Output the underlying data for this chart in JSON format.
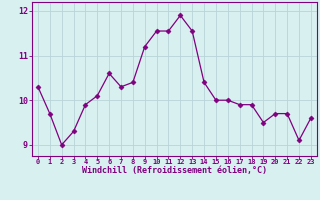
{
  "x": [
    0,
    1,
    2,
    3,
    4,
    5,
    6,
    7,
    8,
    9,
    10,
    11,
    12,
    13,
    14,
    15,
    16,
    17,
    18,
    19,
    20,
    21,
    22,
    23
  ],
  "y": [
    10.3,
    9.7,
    9.0,
    9.3,
    9.9,
    10.1,
    10.6,
    10.3,
    10.4,
    11.2,
    11.55,
    11.55,
    11.9,
    11.55,
    10.4,
    10.0,
    10.0,
    9.9,
    9.9,
    9.5,
    9.7,
    9.7,
    9.1,
    9.6
  ],
  "line_color": "#800080",
  "marker": "D",
  "marker_size": 2.5,
  "bg_color": "#d8f0f0",
  "grid_color": "#b8d4d8",
  "xlabel": "Windchill (Refroidissement éolien,°C)",
  "ylabel_ticks": [
    9,
    10,
    11,
    12
  ],
  "xtick_labels": [
    "0",
    "1",
    "2",
    "3",
    "4",
    "5",
    "6",
    "7",
    "8",
    "9",
    "10",
    "11",
    "12",
    "13",
    "14",
    "15",
    "16",
    "17",
    "18",
    "19",
    "20",
    "21",
    "22",
    "23"
  ],
  "ylim": [
    8.75,
    12.2
  ],
  "xlim": [
    -0.5,
    23.5
  ],
  "axis_color": "#800080",
  "tick_color": "#800080",
  "label_color": "#800080"
}
